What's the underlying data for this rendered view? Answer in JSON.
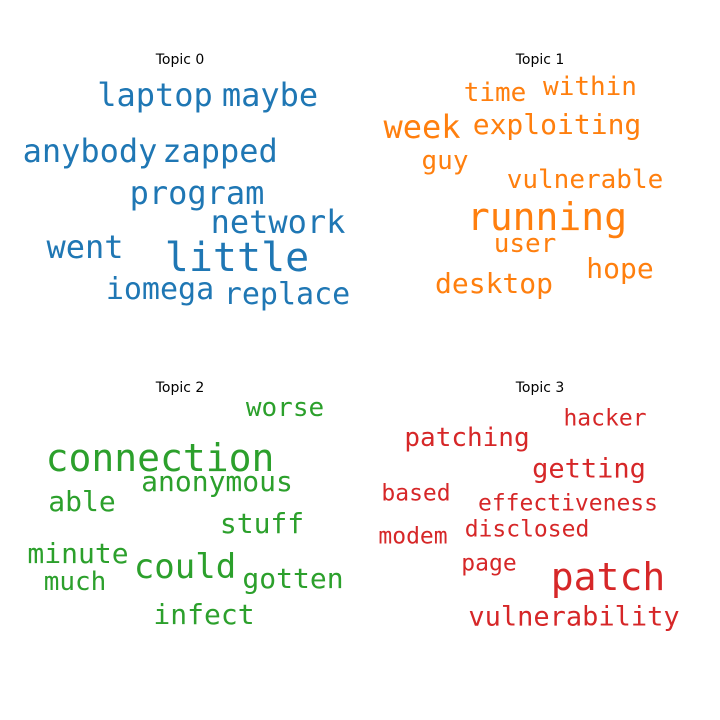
{
  "chart_data": [
    {
      "type": "wordcloud",
      "title": "Topic 0",
      "color": "#1f77b4",
      "words": [
        {
          "text": "laptop",
          "weight": 0.82
        },
        {
          "text": "maybe",
          "weight": 0.82
        },
        {
          "text": "anybody",
          "weight": 0.85
        },
        {
          "text": "zapped",
          "weight": 0.85
        },
        {
          "text": "program",
          "weight": 0.85
        },
        {
          "text": "network",
          "weight": 0.85
        },
        {
          "text": "went",
          "weight": 0.82
        },
        {
          "text": "little",
          "weight": 1.0
        },
        {
          "text": "iomega",
          "weight": 0.8
        },
        {
          "text": "replace",
          "weight": 0.8
        }
      ]
    },
    {
      "type": "wordcloud",
      "title": "Topic 1",
      "color": "#ff7f0e",
      "words": [
        {
          "text": "time",
          "weight": 0.75
        },
        {
          "text": "within",
          "weight": 0.75
        },
        {
          "text": "week",
          "weight": 0.85
        },
        {
          "text": "exploiting",
          "weight": 0.77
        },
        {
          "text": "guy",
          "weight": 0.72
        },
        {
          "text": "vulnerable",
          "weight": 0.72
        },
        {
          "text": "running",
          "weight": 1.0
        },
        {
          "text": "user",
          "weight": 0.72
        },
        {
          "text": "hope",
          "weight": 0.72
        },
        {
          "text": "desktop",
          "weight": 0.72
        }
      ]
    },
    {
      "type": "wordcloud",
      "title": "Topic 2",
      "color": "#2ca02c",
      "words": [
        {
          "text": "worse",
          "weight": 0.72
        },
        {
          "text": "connection",
          "weight": 1.0
        },
        {
          "text": "anonymous",
          "weight": 0.72
        },
        {
          "text": "able",
          "weight": 0.72
        },
        {
          "text": "stuff",
          "weight": 0.72
        },
        {
          "text": "minute",
          "weight": 0.72
        },
        {
          "text": "could",
          "weight": 0.85
        },
        {
          "text": "much",
          "weight": 0.72
        },
        {
          "text": "gotten",
          "weight": 0.72
        },
        {
          "text": "infect",
          "weight": 0.75
        }
      ]
    },
    {
      "type": "wordcloud",
      "title": "Topic 3",
      "color": "#d62728",
      "words": [
        {
          "text": "hacker",
          "weight": 0.62
        },
        {
          "text": "patching",
          "weight": 0.7
        },
        {
          "text": "getting",
          "weight": 0.72
        },
        {
          "text": "based",
          "weight": 0.6
        },
        {
          "text": "effectiveness",
          "weight": 0.62
        },
        {
          "text": "modem",
          "weight": 0.58
        },
        {
          "text": "disclosed",
          "weight": 0.62
        },
        {
          "text": "page",
          "weight": 0.6
        },
        {
          "text": "patch",
          "weight": 1.0
        },
        {
          "text": "vulnerability",
          "weight": 0.75
        }
      ]
    }
  ]
}
